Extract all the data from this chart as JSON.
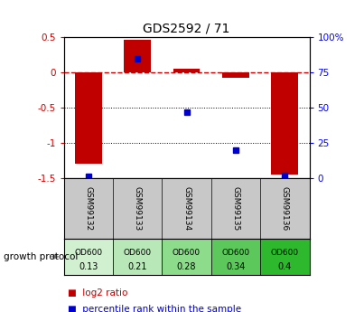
{
  "title": "GDS2592 / 71",
  "categories": [
    "GSM99132",
    "GSM99133",
    "GSM99134",
    "GSM99135",
    "GSM99136"
  ],
  "log2_ratio": [
    -1.3,
    0.47,
    0.05,
    -0.07,
    -1.45
  ],
  "percentile_rank": [
    1.0,
    85.0,
    47.0,
    20.0,
    2.0
  ],
  "od600_labels": [
    "OD600\n0.13",
    "OD600\n0.21",
    "OD600\n0.28",
    "OD600\n0.34",
    "OD600\n0.4"
  ],
  "od600_colors": [
    "#d0f0d0",
    "#b8e8b8",
    "#8cdc8c",
    "#5cc85c",
    "#2db82d"
  ],
  "ylim_left": [
    -1.5,
    0.5
  ],
  "ylim_right": [
    0,
    100
  ],
  "yticks_left": [
    0.5,
    0.0,
    -0.5,
    -1.0,
    -1.5
  ],
  "ytick_left_labels": [
    "0.5",
    "0",
    "-0.5",
    "-1",
    "-1.5"
  ],
  "yticks_right": [
    100,
    75,
    50,
    25,
    0
  ],
  "ytick_right_labels": [
    "100%",
    "75",
    "50",
    "25",
    "0"
  ],
  "bar_color": "#c00000",
  "dot_color": "#0000cc",
  "background_color": "#ffffff",
  "label_area_color": "#c8c8c8",
  "zero_line_color": "#cc0000",
  "grid_color": "#000000",
  "legend_red_label": "log2 ratio",
  "legend_blue_label": "percentile rank within the sample",
  "growth_protocol_label": "growth protocol"
}
